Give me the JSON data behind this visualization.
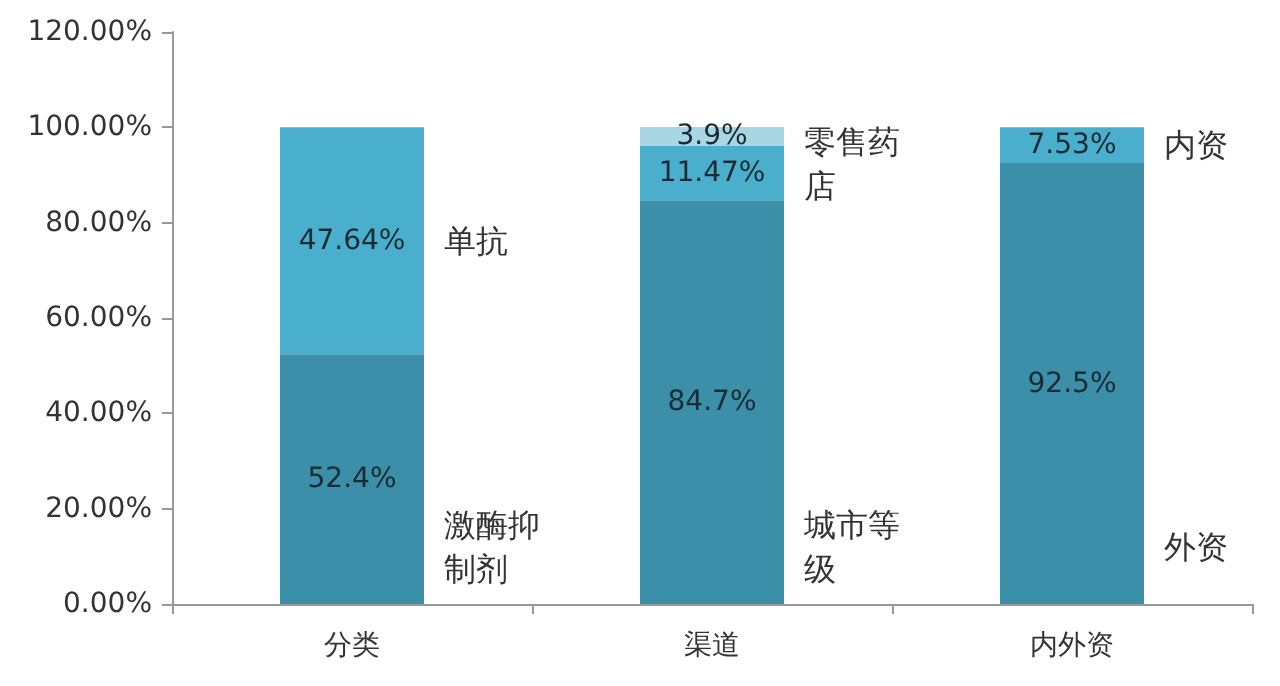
{
  "chart_data": {
    "type": "bar",
    "stacked": true,
    "categories": [
      "分类",
      "渠道",
      "内外资"
    ],
    "series": [
      {
        "color": "#3b8fa9",
        "values": [
          52.4,
          84.7,
          92.5
        ],
        "value_labels": [
          "52.4%",
          "84.7%",
          "92.5%"
        ]
      },
      {
        "color": "#4aafcc",
        "values": [
          47.64,
          11.47,
          7.53
        ],
        "value_labels": [
          "47.64%",
          "11.47%",
          "7.53%"
        ]
      },
      {
        "color": "#a9d6e3",
        "values": [
          null,
          3.9,
          null
        ],
        "value_labels": [
          null,
          "3.9%",
          null
        ]
      }
    ],
    "ylim": [
      0,
      120
    ],
    "yticks": [
      {
        "value": 0,
        "label": "0.00%"
      },
      {
        "value": 20,
        "label": "20.00%"
      },
      {
        "value": 40,
        "label": "40.00%"
      },
      {
        "value": 60,
        "label": "60.00%"
      },
      {
        "value": 80,
        "label": "80.00%"
      },
      {
        "value": 100,
        "label": "100.00%"
      },
      {
        "value": 120,
        "label": "120.00%"
      }
    ],
    "grid": false,
    "annotations": [
      "激酶抑制剂",
      "单抗",
      "城市等级",
      "零售药店",
      "外资",
      "内资"
    ]
  }
}
